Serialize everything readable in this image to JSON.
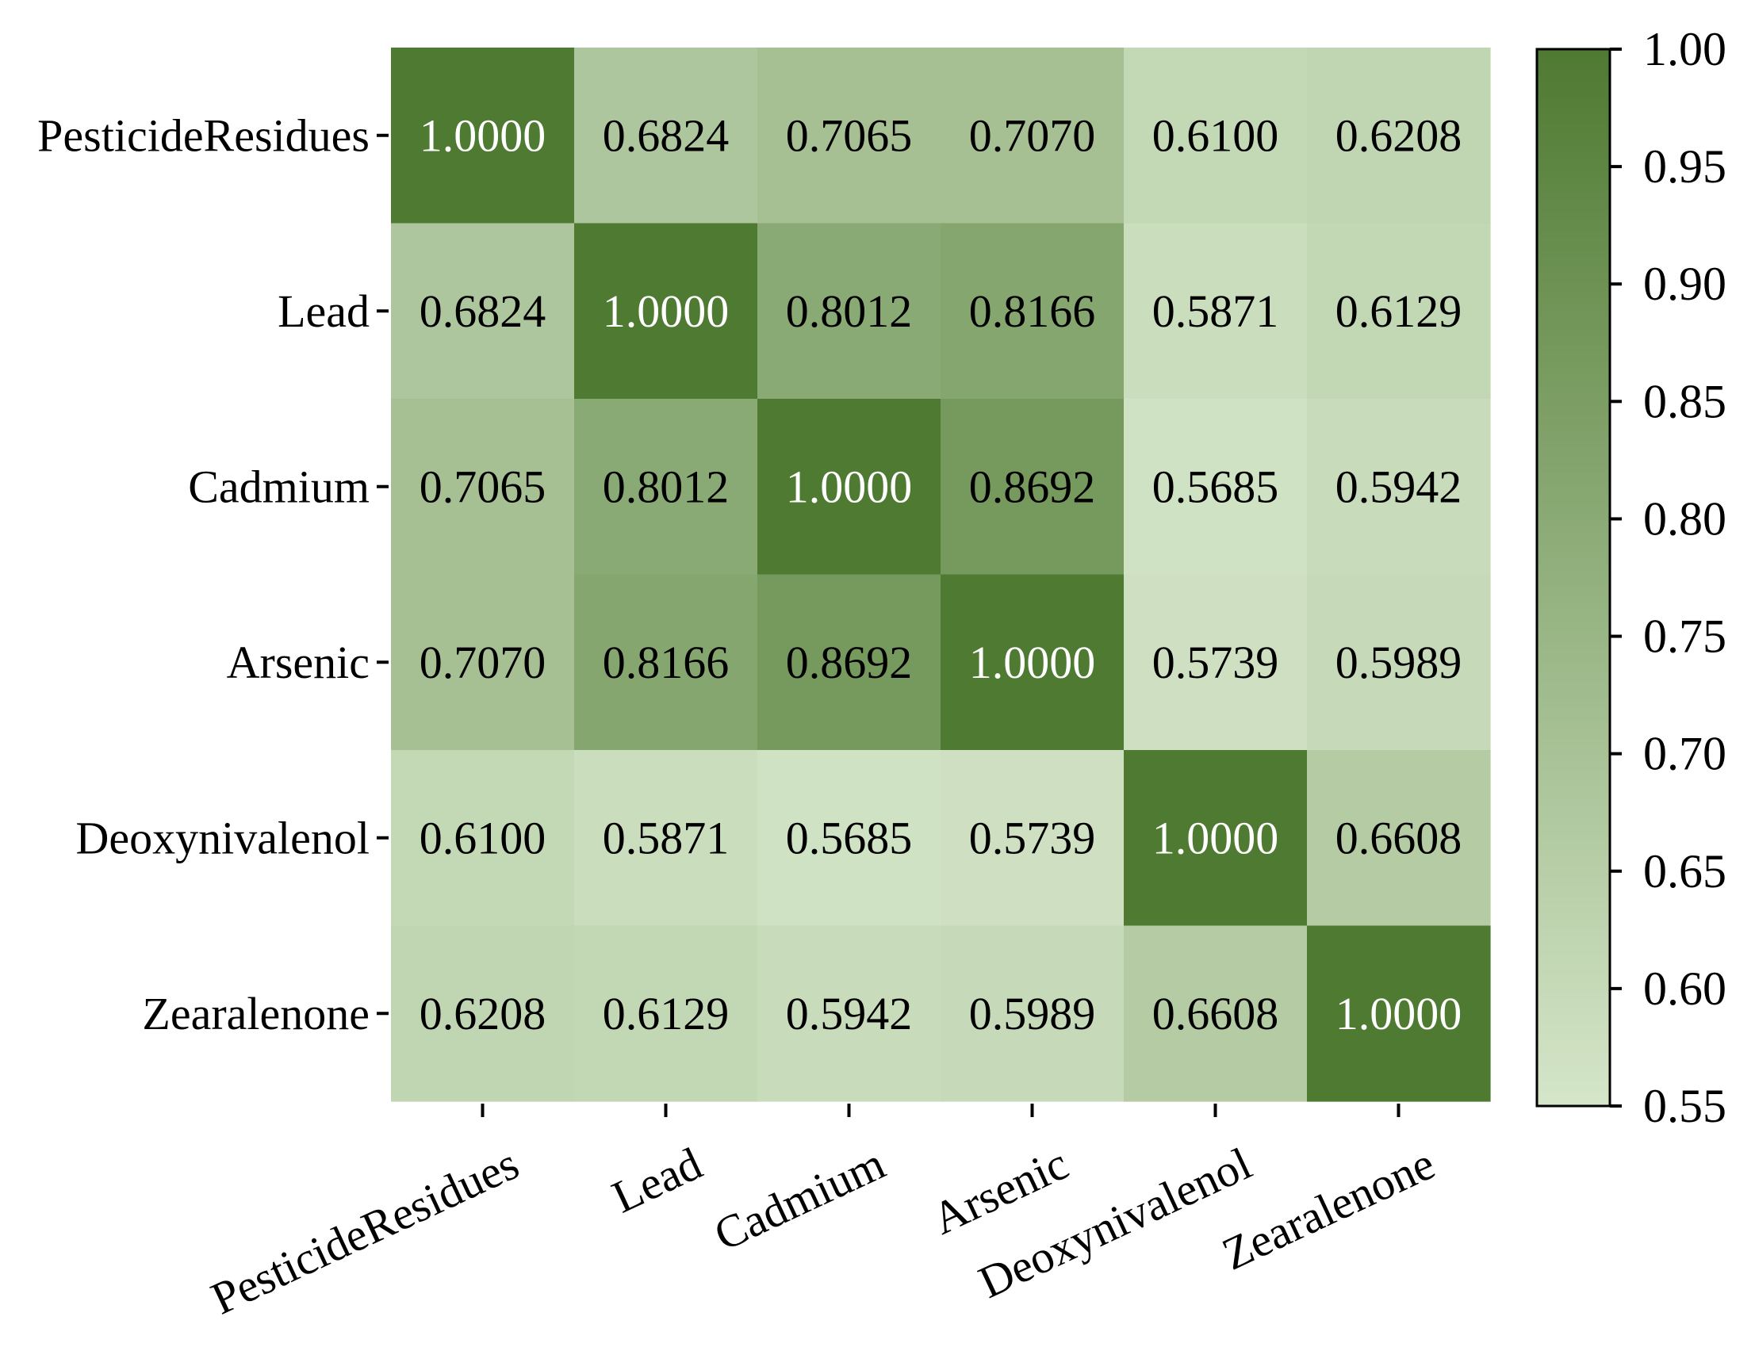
{
  "chart_data": {
    "type": "heatmap",
    "title": "",
    "xlabel": "",
    "ylabel": "",
    "x_categories": [
      "PesticideResidues",
      "Lead",
      "Cadmium",
      "Arsenic",
      "Deoxynivalenol",
      "Zearalenone"
    ],
    "y_categories": [
      "PesticideResidues",
      "Lead",
      "Cadmium",
      "Arsenic",
      "Deoxynivalenol",
      "Zearalenone"
    ],
    "values": [
      [
        1.0,
        0.6824,
        0.7065,
        0.707,
        0.61,
        0.6208
      ],
      [
        0.6824,
        1.0,
        0.8012,
        0.8166,
        0.5871,
        0.6129
      ],
      [
        0.7065,
        0.8012,
        1.0,
        0.8692,
        0.5685,
        0.5942
      ],
      [
        0.707,
        0.8166,
        0.8692,
        1.0,
        0.5739,
        0.5989
      ],
      [
        0.61,
        0.5871,
        0.5685,
        0.5739,
        1.0,
        0.6608
      ],
      [
        0.6208,
        0.6129,
        0.5942,
        0.5989,
        0.6608,
        1.0
      ]
    ],
    "cell_labels": [
      [
        "1.0000",
        "0.6824",
        "0.7065",
        "0.7070",
        "0.6100",
        "0.6208"
      ],
      [
        "0.6824",
        "1.0000",
        "0.8012",
        "0.8166",
        "0.5871",
        "0.6129"
      ],
      [
        "0.7065",
        "0.8012",
        "1.0000",
        "0.8692",
        "0.5685",
        "0.5942"
      ],
      [
        "0.7070",
        "0.8166",
        "0.8692",
        "1.0000",
        "0.5739",
        "0.5989"
      ],
      [
        "0.6100",
        "0.5871",
        "0.5685",
        "0.5739",
        "1.0000",
        "0.6608"
      ],
      [
        "0.6208",
        "0.6129",
        "0.5942",
        "0.5989",
        "0.6608",
        "1.0000"
      ]
    ],
    "colorbar": {
      "range": [
        0.55,
        1.0
      ],
      "ticks": [
        "0.55",
        "0.60",
        "0.65",
        "0.70",
        "0.75",
        "0.80",
        "0.85",
        "0.90",
        "0.95",
        "1.00"
      ],
      "color_low": "#d5e6c9",
      "color_high": "#4f7a32"
    },
    "label_color_dark": "#000000",
    "label_color_light": "#ffffff",
    "grid": false,
    "legend": "colorbar-right"
  }
}
